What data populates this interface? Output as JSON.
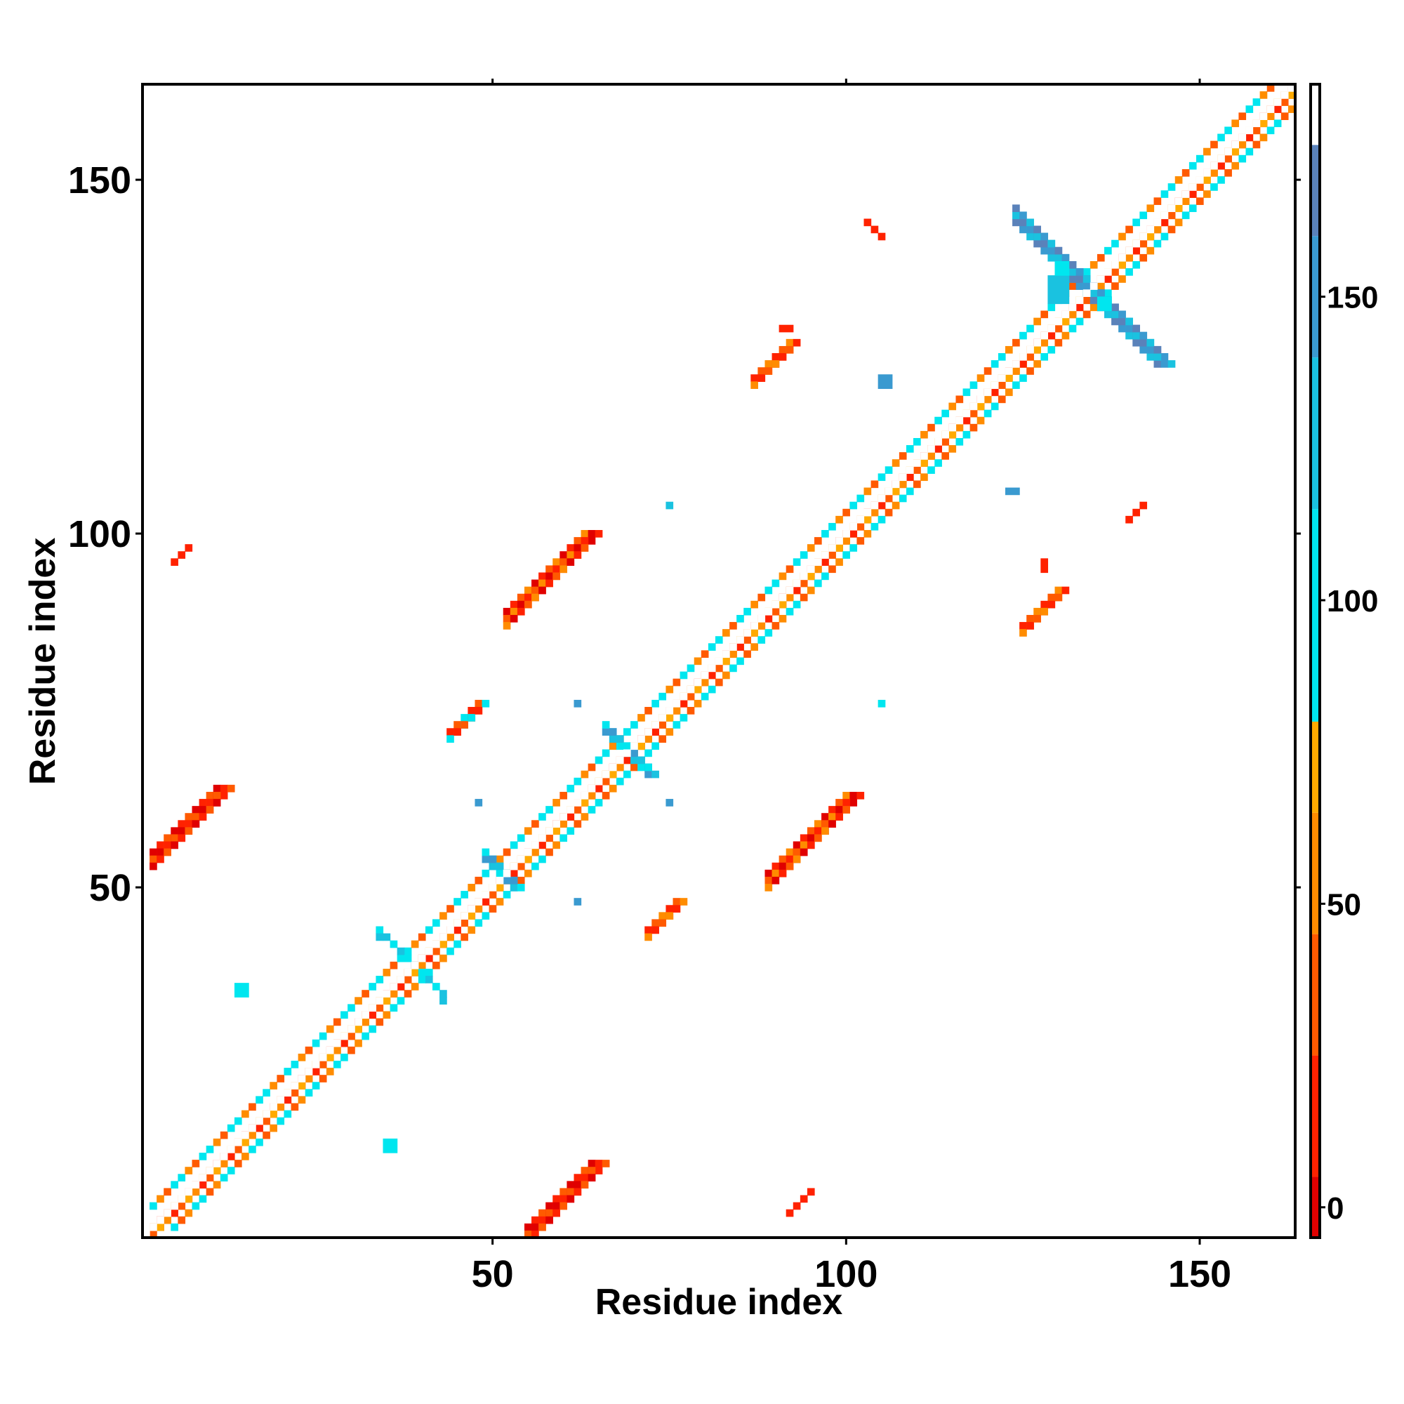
{
  "chart_data": {
    "type": "heatmap",
    "title": "",
    "xlabel": "Residue index",
    "ylabel": "Residue index",
    "xlim": [
      1,
      163
    ],
    "ylim": [
      1,
      163
    ],
    "xticks": [
      50,
      100,
      150
    ],
    "yticks": [
      50,
      100,
      150
    ],
    "xtick_labels": [
      "50",
      "100",
      "150"
    ],
    "ytick_labels": [
      "50",
      "100",
      "150"
    ],
    "grid": false,
    "colorbar": {
      "range": [
        -5,
        185
      ],
      "ticks": [
        0,
        50,
        100,
        150
      ],
      "tick_labels": [
        "0",
        "50",
        "100",
        "150"
      ],
      "bands": [
        {
          "from": -5,
          "to": 5,
          "color": "#e00000"
        },
        {
          "from": 5,
          "to": 25,
          "color": "#ff2200"
        },
        {
          "from": 25,
          "to": 45,
          "color": "#ff5a00"
        },
        {
          "from": 45,
          "to": 65,
          "color": "#ff8c00"
        },
        {
          "from": 65,
          "to": 80,
          "color": "#ffaa00"
        },
        {
          "from": 80,
          "to": 115,
          "color": "#00e6ef"
        },
        {
          "from": 115,
          "to": 140,
          "color": "#1ac2e0"
        },
        {
          "from": 140,
          "to": 160,
          "color": "#3a9ad0"
        },
        {
          "from": 160,
          "to": 175,
          "color": "#5a82ba"
        },
        {
          "from": 175,
          "to": 185,
          "color": "#ffffff"
        }
      ]
    },
    "segments": [
      {
        "x0": 2,
        "y0": 2,
        "x1": 163,
        "y1": 163,
        "width": 2,
        "pattern": [
          "#ff8c00",
          "#ff2200",
          "#ff5a00",
          "#ffaa00"
        ],
        "note": "diagonal"
      },
      {
        "x0": 2,
        "y0": 5,
        "x1": 160,
        "y1": 163,
        "width": 1,
        "pattern": [
          "#00e6ef",
          "#ff8c00",
          "#ff5a00",
          "#00e6ef"
        ]
      },
      {
        "x0": 5,
        "y0": 2,
        "x1": 163,
        "y1": 160,
        "width": 1,
        "pattern": [
          "#00e6ef",
          "#ff5a00",
          "#ff8c00",
          "#00e6ef"
        ]
      },
      {
        "x0": 2,
        "y0": 55,
        "x1": 10,
        "y1": 64,
        "width": 3,
        "pattern": [
          "#e00000",
          "#ff2200",
          "#ff5a00"
        ]
      },
      {
        "x0": 55,
        "y0": 2,
        "x1": 64,
        "y1": 10,
        "width": 3,
        "pattern": [
          "#e00000",
          "#ff2200",
          "#ff5a00"
        ]
      },
      {
        "x0": 52,
        "y0": 89,
        "x1": 62,
        "y1": 100,
        "width": 3,
        "pattern": [
          "#e00000",
          "#ff2200",
          "#ff5a00",
          "#ff8c00"
        ]
      },
      {
        "x0": 89,
        "y0": 52,
        "x1": 100,
        "y1": 62,
        "width": 3,
        "pattern": [
          "#e00000",
          "#ff2200",
          "#ff5a00",
          "#ff8c00"
        ]
      },
      {
        "x0": 44,
        "y0": 72,
        "x1": 48,
        "y1": 75,
        "width": 2,
        "pattern": [
          "#ff2200",
          "#ff5a00",
          "#00e6ef"
        ]
      },
      {
        "x0": 72,
        "y0": 44,
        "x1": 75,
        "y1": 48,
        "width": 2,
        "pattern": [
          "#ff2200",
          "#ff5a00",
          "#ff8c00"
        ]
      },
      {
        "x0": 87,
        "y0": 122,
        "x1": 91,
        "y1": 127,
        "width": 2,
        "pattern": [
          "#ff2200",
          "#ff5a00",
          "#ff8c00"
        ]
      },
      {
        "x0": 125,
        "y0": 87,
        "x1": 130,
        "y1": 91,
        "width": 2,
        "pattern": [
          "#ff2200",
          "#ff5a00",
          "#ff8c00"
        ]
      },
      {
        "x0": 124,
        "y0": 144,
        "x1": 136,
        "y1": 132,
        "width": 3,
        "pattern": [
          "#5a82ba",
          "#3a9ad0",
          "#1ac2e0"
        ]
      },
      {
        "x0": 132,
        "y0": 136,
        "x1": 144,
        "y1": 124,
        "width": 3,
        "pattern": [
          "#5a82ba",
          "#3a9ad0",
          "#1ac2e0"
        ]
      },
      {
        "x0": 66,
        "y0": 72,
        "x1": 72,
        "y1": 66,
        "width": 2,
        "pattern": [
          "#3a9ad0",
          "#1ac2e0",
          "#00e6ef"
        ]
      },
      {
        "x0": 49,
        "y0": 54,
        "x1": 53,
        "y1": 50,
        "width": 2,
        "pattern": [
          "#3a9ad0",
          "#1ac2e0",
          "#00e6ef"
        ]
      },
      {
        "x0": 34,
        "y0": 44,
        "x1": 43,
        "y1": 35,
        "width": 1,
        "pattern": [
          "#00e6ef",
          "#1ac2e0"
        ]
      },
      {
        "x0": 103,
        "y0": 144,
        "x1": 105,
        "y1": 142,
        "width": 1,
        "pattern": [
          "#ff2200"
        ]
      },
      {
        "x0": 140,
        "y0": 102,
        "x1": 142,
        "y1": 104,
        "width": 1,
        "pattern": [
          "#ff2200"
        ]
      },
      {
        "x0": 5,
        "y0": 96,
        "x1": 7,
        "y1": 98,
        "width": 1,
        "pattern": [
          "#ff2200"
        ]
      },
      {
        "x0": 92,
        "y0": 4,
        "x1": 95,
        "y1": 7,
        "width": 1,
        "pattern": [
          "#ff2200"
        ]
      }
    ],
    "points": [
      {
        "x": 129,
        "y": 133,
        "color": "#1ac2e0",
        "w": 3,
        "h": 4
      },
      {
        "x": 136,
        "y": 132,
        "color": "#00e6ef",
        "w": 2,
        "h": 2
      },
      {
        "x": 130,
        "y": 137,
        "color": "#00e6ef",
        "w": 2,
        "h": 2
      },
      {
        "x": 105,
        "y": 121,
        "color": "#3a9ad0",
        "w": 2,
        "h": 2
      },
      {
        "x": 123,
        "y": 106,
        "color": "#3a9ad0",
        "w": 2,
        "h": 1
      },
      {
        "x": 75,
        "y": 104,
        "color": "#1ac2e0",
        "w": 1,
        "h": 1
      },
      {
        "x": 62,
        "y": 76,
        "color": "#3a9ad0",
        "w": 1,
        "h": 1
      },
      {
        "x": 105,
        "y": 76,
        "color": "#00e6ef",
        "w": 1,
        "h": 1
      },
      {
        "x": 48,
        "y": 62,
        "color": "#3a9ad0",
        "w": 1,
        "h": 1
      },
      {
        "x": 75,
        "y": 62,
        "color": "#3a9ad0",
        "w": 1,
        "h": 1
      },
      {
        "x": 62,
        "y": 48,
        "color": "#3a9ad0",
        "w": 1,
        "h": 1
      },
      {
        "x": 14,
        "y": 35,
        "color": "#00e6ef",
        "w": 2,
        "h": 2
      },
      {
        "x": 35,
        "y": 13,
        "color": "#00e6ef",
        "w": 2,
        "h": 2
      },
      {
        "x": 34,
        "y": 43,
        "color": "#1ac2e0",
        "w": 1,
        "h": 1
      },
      {
        "x": 43,
        "y": 34,
        "color": "#1ac2e0",
        "w": 1,
        "h": 1
      },
      {
        "x": 91,
        "y": 129,
        "color": "#ff2200",
        "w": 2,
        "h": 1
      },
      {
        "x": 128,
        "y": 95,
        "color": "#ff2200",
        "w": 1,
        "h": 2
      }
    ]
  }
}
